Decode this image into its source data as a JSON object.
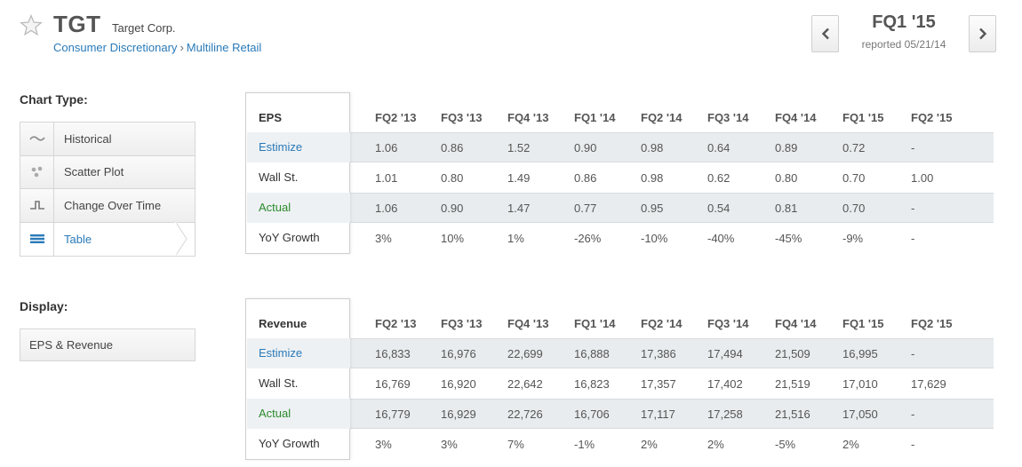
{
  "header": {
    "ticker": "TGT",
    "company": "Target Corp.",
    "sector": "Consumer Discretionary",
    "separator": "›",
    "industry": "Multiline Retail",
    "period": "FQ1 '15",
    "reported": "reported 05/21/14"
  },
  "sidebar": {
    "chart_type_label": "Chart Type:",
    "chart_types": [
      {
        "label": "Historical",
        "icon": "wave-icon"
      },
      {
        "label": "Scatter Plot",
        "icon": "scatter-icon"
      },
      {
        "label": "Change Over Time",
        "icon": "step-icon"
      },
      {
        "label": "Table",
        "icon": "table-icon",
        "active": true
      }
    ],
    "display_label": "Display:",
    "display_value": "EPS & Revenue"
  },
  "colors": {
    "link": "#2a7ab8",
    "actual": "#2a8a2a",
    "row_shade": "#e9ecee"
  },
  "eps_table": {
    "title": "EPS",
    "periods": [
      "FQ2 '13",
      "FQ3 '13",
      "FQ4 '13",
      "FQ1 '14",
      "FQ2 '14",
      "FQ3 '14",
      "FQ4 '14",
      "FQ1 '15",
      "FQ2 '15"
    ],
    "rows": [
      {
        "label": "Estimize",
        "values": [
          "1.06",
          "0.86",
          "1.52",
          "0.90",
          "0.98",
          "0.64",
          "0.89",
          "0.72",
          "-"
        ]
      },
      {
        "label": "Wall St.",
        "values": [
          "1.01",
          "0.80",
          "1.49",
          "0.86",
          "0.98",
          "0.62",
          "0.80",
          "0.70",
          "1.00"
        ]
      },
      {
        "label": "Actual",
        "values": [
          "1.06",
          "0.90",
          "1.47",
          "0.77",
          "0.95",
          "0.54",
          "0.81",
          "0.70",
          "-"
        ]
      },
      {
        "label": "YoY Growth",
        "values": [
          "3%",
          "10%",
          "1%",
          "-26%",
          "-10%",
          "-40%",
          "-45%",
          "-9%",
          "-"
        ]
      }
    ]
  },
  "revenue_table": {
    "title": "Revenue",
    "periods": [
      "FQ2 '13",
      "FQ3 '13",
      "FQ4 '13",
      "FQ1 '14",
      "FQ2 '14",
      "FQ3 '14",
      "FQ4 '14",
      "FQ1 '15",
      "FQ2 '15"
    ],
    "rows": [
      {
        "label": "Estimize",
        "values": [
          "16,833",
          "16,976",
          "22,699",
          "16,888",
          "17,386",
          "17,494",
          "21,509",
          "16,995",
          "-"
        ]
      },
      {
        "label": "Wall St.",
        "values": [
          "16,769",
          "16,920",
          "22,642",
          "16,823",
          "17,357",
          "17,402",
          "21,519",
          "17,010",
          "17,629"
        ]
      },
      {
        "label": "Actual",
        "values": [
          "16,779",
          "16,929",
          "22,726",
          "16,706",
          "17,117",
          "17,258",
          "21,516",
          "17,050",
          "-"
        ]
      },
      {
        "label": "YoY Growth",
        "values": [
          "3%",
          "3%",
          "7%",
          "-1%",
          "2%",
          "2%",
          "-5%",
          "2%",
          "-"
        ]
      }
    ]
  }
}
